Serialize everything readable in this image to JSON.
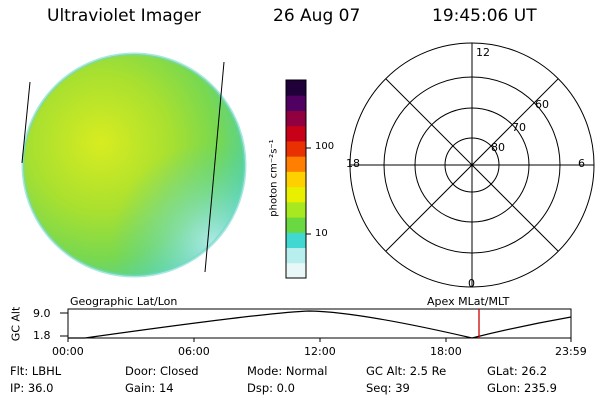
{
  "header": {
    "instrument": "Ultraviolet Imager",
    "date": "26 Aug 07",
    "time": "19:45:06 UT"
  },
  "colorbar": {
    "unit_label": "photon cm⁻²s⁻¹",
    "ticks": [
      {
        "label": "100",
        "value": 100
      },
      {
        "label": "10",
        "value": 10
      }
    ],
    "scale": "log",
    "colors": [
      "#e8f8f8",
      "#b8eeee",
      "#40d8d0",
      "#6ad840",
      "#a8e820",
      "#e8f000",
      "#ffd000",
      "#ff8000",
      "#e83000",
      "#c80018",
      "#900040",
      "#500060",
      "#200038"
    ]
  },
  "polar": {
    "labels": [
      {
        "text": "12"
      },
      {
        "text": "18"
      },
      {
        "text": "6"
      },
      {
        "text": "0"
      },
      {
        "text": "60"
      },
      {
        "text": "70"
      },
      {
        "text": "80"
      }
    ]
  },
  "timeline": {
    "left_label": "Geographic Lat/Lon",
    "right_label": "Apex  MLat/MLT",
    "axis_label": "GC Alt",
    "y_ticks": [
      "9.0",
      "1.8"
    ],
    "x_ticks": [
      "00:00",
      "06:00",
      "12:00",
      "18:00",
      "23:59"
    ],
    "marker_color": "#cc0000"
  },
  "info": {
    "row1": {
      "filter": "Flt: LBHL",
      "door": "Door: Closed",
      "mode": "Mode: Normal",
      "gcalt": "GC Alt: 2.5 Re",
      "glat": "GLat:  26.2"
    },
    "row2": {
      "ip": "IP: 36.0",
      "gain": "Gain: 14",
      "dsp": "Dsp:      0.0",
      "seq": "Seq: 39",
      "glon": "GLon: 235.9"
    }
  }
}
